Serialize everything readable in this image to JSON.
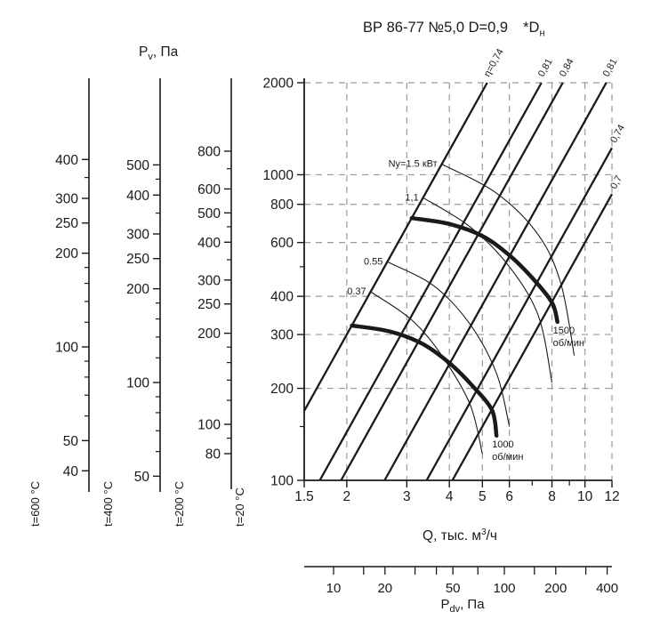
{
  "title": {
    "main": "ВР 86-77 №5,0 D=0,9",
    "star": "*D",
    "sub": "н"
  },
  "labels": {
    "pv": {
      "p": "P",
      "sub": "v",
      "rest": ", Па"
    },
    "q": {
      "pre": "Q, тыс. м",
      "sup": "3",
      "post": "/ч"
    },
    "pdv": {
      "p": "P",
      "sub": "dv",
      "rest": ", Па"
    }
  },
  "colors": {
    "line": "#1a1a1a",
    "grid": "#999999",
    "text": "#1a1a1a",
    "background": "#ffffff"
  },
  "chart_data": {
    "type": "line",
    "title": "ВР 86-77 №5,0 D=0,9 *Dн",
    "xlabel": "Q, тыс. м³/ч",
    "ylabel": "Pv, Па",
    "x_axis": {
      "scale": "log",
      "range": [
        1.5,
        12
      ],
      "ticks": [
        1.5,
        2,
        3,
        4,
        5,
        6,
        8,
        10,
        12
      ],
      "minor_ticks": [
        7,
        9
      ]
    },
    "y_axis": {
      "scale": "log",
      "range": [
        100,
        2000
      ],
      "temp_label": "t=20 °C",
      "ticks": [
        2000,
        1000,
        800,
        600,
        400,
        300,
        200,
        100
      ],
      "minor_ticks": [
        500,
        150
      ]
    },
    "grid": {
      "x_values": [
        2,
        3,
        4,
        5,
        6,
        8,
        10,
        12
      ],
      "y_values": [
        2000,
        1000,
        800,
        600,
        400,
        300,
        200
      ]
    },
    "aux_axes": [
      {
        "temp_label": "t=600 °C",
        "labeled_ticks": [
          400,
          300,
          250,
          200,
          100,
          50,
          40
        ],
        "minor_ticks": [
          350,
          180,
          160,
          140,
          120,
          90,
          80,
          70,
          60
        ]
      },
      {
        "temp_label": "t=400 °C",
        "labeled_ticks": [
          500,
          400,
          300,
          250,
          200,
          100,
          50
        ],
        "minor_ticks": [
          450,
          350,
          180,
          160,
          140,
          120,
          90,
          80,
          70,
          60
        ]
      },
      {
        "temp_label": "t=200 °C",
        "labeled_ticks": [
          800,
          600,
          500,
          400,
          300,
          250,
          200,
          100,
          80
        ],
        "minor_ticks": [
          700,
          450,
          350,
          180,
          160,
          140,
          120,
          90
        ]
      }
    ],
    "efficiency_lines": [
      {
        "label": "η=0,74",
        "c": 75,
        "label_side": "top"
      },
      {
        "label": "0,81",
        "c": 36,
        "label_side": "top"
      },
      {
        "label": "0,84",
        "c": 27,
        "label_side": "top"
      },
      {
        "label": "0,81",
        "c": 15,
        "label_side": "top"
      },
      {
        "label": "0,74",
        "c": 8.5,
        "label_side": "right"
      },
      {
        "label": "0,7",
        "c": 6,
        "label_side": "right"
      }
    ],
    "rpm_curves": [
      {
        "label_line1": "1500",
        "label_line2": "об/мин",
        "points": [
          [
            3.1,
            721
          ],
          [
            4,
            690
          ],
          [
            5,
            630
          ],
          [
            6,
            545
          ],
          [
            7,
            460
          ],
          [
            8,
            382
          ],
          [
            8.3,
            330
          ]
        ]
      },
      {
        "label_line1": "1000",
        "label_line2": "об/мин",
        "points": [
          [
            2.07,
            321
          ],
          [
            2.67,
            307
          ],
          [
            3.33,
            280
          ],
          [
            4,
            242
          ],
          [
            4.67,
            204
          ],
          [
            5.33,
            170
          ],
          [
            5.5,
            140
          ]
        ]
      }
    ],
    "power_curves": [
      {
        "label": "Nу=1.5 кВт",
        "points": [
          [
            3.8,
            1083
          ],
          [
            5.5,
            870
          ],
          [
            7.3,
            635
          ],
          [
            8.5,
            440
          ],
          [
            9.3,
            256
          ]
        ]
      },
      {
        "label": "1,1",
        "points": [
          [
            3.35,
            841
          ],
          [
            4.6,
            675
          ],
          [
            6,
            500
          ],
          [
            7.3,
            345
          ],
          [
            8,
            209
          ]
        ]
      },
      {
        "label": "0.55",
        "points": [
          [
            2.63,
            519
          ],
          [
            3.6,
            433
          ],
          [
            4.6,
            324
          ],
          [
            5.5,
            224
          ],
          [
            6,
            150
          ]
        ]
      },
      {
        "label": "0.37",
        "points": [
          [
            2.35,
            414
          ],
          [
            3.1,
            335
          ],
          [
            3.8,
            256
          ],
          [
            4.6,
            177
          ],
          [
            5,
            122
          ]
        ]
      }
    ],
    "pdv_axis": {
      "scale": "log",
      "ticks": [
        10,
        15,
        20,
        30,
        40,
        50,
        70,
        100,
        150,
        200,
        300,
        400
      ],
      "labeled": [
        10,
        20,
        50,
        100,
        200,
        400
      ]
    }
  }
}
